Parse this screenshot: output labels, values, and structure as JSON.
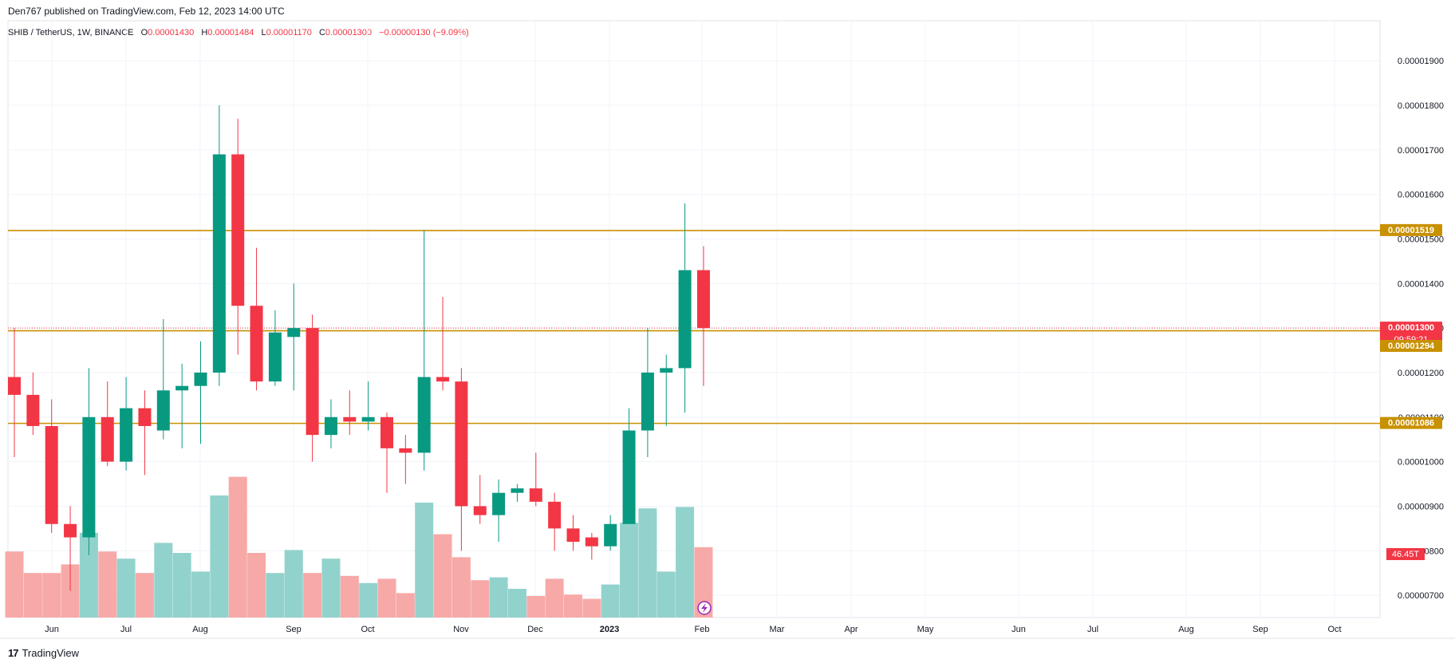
{
  "header": {
    "published": "Den767 published on TradingView.com, Feb 12, 2023 14:00 UTC",
    "symbol": "SHIB / TetherUS, 1W, BINANCE",
    "o_label": "O",
    "o_value": "0.00001430",
    "h_label": "H",
    "h_value": "0.00001484",
    "l_label": "L",
    "l_value": "0.00001170",
    "c_label": "C",
    "c_value": "0.00001300",
    "change": "−0.00000130 (−9.09%)"
  },
  "footer": {
    "brand": "TradingView",
    "logo": "17"
  },
  "colors": {
    "up": "#089981",
    "down": "#f23645",
    "vol_up": "#92d2cc",
    "vol_down": "#f7a9a7",
    "level": "#c89100",
    "grid": "#f0f3fa",
    "axis_text": "#131722"
  },
  "chart_data": {
    "type": "candlestick",
    "ylim": [
      6.5e-06,
      1.99e-05
    ],
    "y_ticks": [
      "0.00000700",
      "0.00000800",
      "0.00000900",
      "0.00001000",
      "0.00001100",
      "0.00001200",
      "0.00001300",
      "0.00001400",
      "0.00001500",
      "0.00001600",
      "0.00001700",
      "0.00001800",
      "0.00001900"
    ],
    "x_ticks": [
      "Jun",
      "Jul",
      "Aug",
      "Sep",
      "Oct",
      "Nov",
      "Dec",
      "2023",
      "Feb",
      "Mar",
      "Apr",
      "May",
      "Jun",
      "Jul",
      "Aug",
      "Sep",
      "Oct"
    ],
    "candles": [
      {
        "o": 1.19,
        "h": 1.3,
        "l": 1.01,
        "c": 1.15
      },
      {
        "o": 1.15,
        "h": 1.2,
        "l": 1.06,
        "c": 1.08
      },
      {
        "o": 1.08,
        "h": 1.14,
        "l": 0.84,
        "c": 0.86
      },
      {
        "o": 0.86,
        "h": 0.9,
        "l": 0.71,
        "c": 0.83
      },
      {
        "o": 0.83,
        "h": 1.21,
        "l": 0.79,
        "c": 1.1
      },
      {
        "o": 1.1,
        "h": 1.18,
        "l": 0.99,
        "c": 1.0
      },
      {
        "o": 1.0,
        "h": 1.19,
        "l": 0.98,
        "c": 1.12
      },
      {
        "o": 1.12,
        "h": 1.16,
        "l": 0.97,
        "c": 1.08
      },
      {
        "o": 1.07,
        "h": 1.32,
        "l": 1.05,
        "c": 1.16
      },
      {
        "o": 1.16,
        "h": 1.22,
        "l": 1.03,
        "c": 1.17
      },
      {
        "o": 1.17,
        "h": 1.27,
        "l": 1.04,
        "c": 1.2
      },
      {
        "o": 1.2,
        "h": 1.8,
        "l": 1.17,
        "c": 1.69
      },
      {
        "o": 1.69,
        "h": 1.77,
        "l": 1.24,
        "c": 1.35
      },
      {
        "o": 1.35,
        "h": 1.48,
        "l": 1.16,
        "c": 1.18
      },
      {
        "o": 1.18,
        "h": 1.34,
        "l": 1.17,
        "c": 1.29
      },
      {
        "o": 1.28,
        "h": 1.4,
        "l": 1.16,
        "c": 1.3
      },
      {
        "o": 1.3,
        "h": 1.33,
        "l": 1.0,
        "c": 1.06
      },
      {
        "o": 1.06,
        "h": 1.14,
        "l": 1.03,
        "c": 1.1
      },
      {
        "o": 1.1,
        "h": 1.16,
        "l": 1.06,
        "c": 1.09
      },
      {
        "o": 1.09,
        "h": 1.18,
        "l": 1.07,
        "c": 1.1
      },
      {
        "o": 1.1,
        "h": 1.11,
        "l": 0.93,
        "c": 1.03
      },
      {
        "o": 1.03,
        "h": 1.06,
        "l": 0.95,
        "c": 1.02
      },
      {
        "o": 1.02,
        "h": 1.52,
        "l": 0.98,
        "c": 1.19
      },
      {
        "o": 1.19,
        "h": 1.37,
        "l": 1.16,
        "c": 1.18
      },
      {
        "o": 1.18,
        "h": 1.21,
        "l": 0.8,
        "c": 0.9
      },
      {
        "o": 0.9,
        "h": 0.97,
        "l": 0.86,
        "c": 0.88
      },
      {
        "o": 0.88,
        "h": 0.96,
        "l": 0.82,
        "c": 0.93
      },
      {
        "o": 0.93,
        "h": 0.95,
        "l": 0.91,
        "c": 0.94
      },
      {
        "o": 0.94,
        "h": 1.02,
        "l": 0.9,
        "c": 0.91
      },
      {
        "o": 0.91,
        "h": 0.93,
        "l": 0.8,
        "c": 0.85
      },
      {
        "o": 0.85,
        "h": 0.88,
        "l": 0.8,
        "c": 0.82
      },
      {
        "o": 0.83,
        "h": 0.84,
        "l": 0.78,
        "c": 0.81
      },
      {
        "o": 0.81,
        "h": 0.88,
        "l": 0.8,
        "c": 0.86
      },
      {
        "o": 0.86,
        "h": 1.12,
        "l": 0.86,
        "c": 1.07
      },
      {
        "o": 1.07,
        "h": 1.3,
        "l": 1.01,
        "c": 1.2
      },
      {
        "o": 1.2,
        "h": 1.24,
        "l": 1.08,
        "c": 1.21
      },
      {
        "o": 1.21,
        "h": 1.58,
        "l": 1.11,
        "c": 1.43
      },
      {
        "o": 1.43,
        "h": 1.484,
        "l": 1.17,
        "c": 1.3
      }
    ],
    "volume_scale": 1.0,
    "volumes": [
      0.46,
      0.31,
      0.31,
      0.37,
      0.59,
      0.46,
      0.41,
      0.31,
      0.52,
      0.45,
      0.32,
      0.85,
      0.98,
      0.45,
      0.31,
      0.47,
      0.31,
      0.41,
      0.29,
      0.24,
      0.27,
      0.17,
      0.8,
      0.58,
      0.42,
      0.26,
      0.28,
      0.2,
      0.15,
      0.27,
      0.16,
      0.13,
      0.23,
      0.66,
      0.76,
      0.32,
      0.77,
      0.49
    ],
    "levels": [
      {
        "price": 1.519e-05,
        "label": "0.00001519"
      },
      {
        "price": 1.294e-05,
        "label": "0.00001294"
      },
      {
        "price": 1.086e-05,
        "label": "0.00001086"
      }
    ],
    "last_price": {
      "label": "0.00001300",
      "countdown": "09:59:21"
    },
    "volume_label": "46.45T"
  }
}
